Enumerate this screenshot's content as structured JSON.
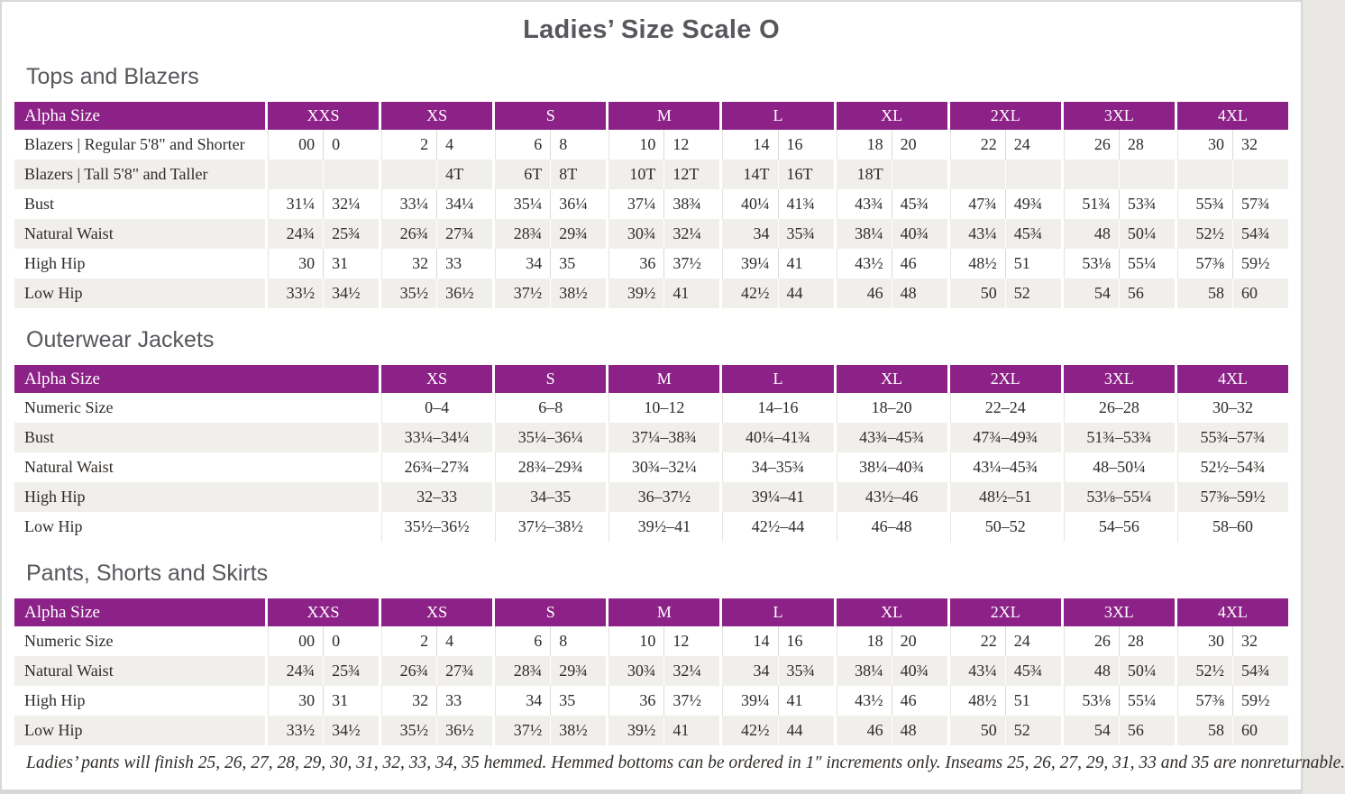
{
  "title": "Ladies’ Size Scale O",
  "colors": {
    "header_purple": "#8c2287",
    "row_stripe": "#f1efec",
    "heading_gray": "#55575b",
    "text": "#2f2b28"
  },
  "sections": [
    {
      "heading": "Tops and Blazers",
      "type": "paired",
      "header": {
        "label": "Alpha Size",
        "sizes": [
          "XXS",
          "XS",
          "S",
          "M",
          "L",
          "XL",
          "2XL",
          "3XL",
          "4XL"
        ]
      },
      "rows": [
        {
          "label": "Blazers | Regular 5'8\" and Shorter",
          "cells": [
            [
              "00",
              "0"
            ],
            [
              "2",
              "4"
            ],
            [
              "6",
              "8"
            ],
            [
              "10",
              "12"
            ],
            [
              "14",
              "16"
            ],
            [
              "18",
              "20"
            ],
            [
              "22",
              "24"
            ],
            [
              "26",
              "28"
            ],
            [
              "30",
              "32"
            ]
          ]
        },
        {
          "label": "Blazers | Tall 5'8\" and Taller",
          "cells": [
            [
              "",
              ""
            ],
            [
              "",
              "4T"
            ],
            [
              "6T",
              "8T"
            ],
            [
              "10T",
              "12T"
            ],
            [
              "14T",
              "16T"
            ],
            [
              "18T",
              ""
            ],
            [
              "",
              ""
            ],
            [
              "",
              ""
            ],
            [
              "",
              ""
            ]
          ]
        },
        {
          "label": "Bust",
          "cells": [
            [
              "31¼",
              "32¼"
            ],
            [
              "33¼",
              "34¼"
            ],
            [
              "35¼",
              "36¼"
            ],
            [
              "37¼",
              "38¾"
            ],
            [
              "40¼",
              "41¾"
            ],
            [
              "43¾",
              "45¾"
            ],
            [
              "47¾",
              "49¾"
            ],
            [
              "51¾",
              "53¾"
            ],
            [
              "55¾",
              "57¾"
            ]
          ]
        },
        {
          "label": "Natural Waist",
          "cells": [
            [
              "24¾",
              "25¾"
            ],
            [
              "26¾",
              "27¾"
            ],
            [
              "28¾",
              "29¾"
            ],
            [
              "30¾",
              "32¼"
            ],
            [
              "34",
              "35¾"
            ],
            [
              "38¼",
              "40¾"
            ],
            [
              "43¼",
              "45¾"
            ],
            [
              "48",
              "50¼"
            ],
            [
              "52½",
              "54¾"
            ]
          ]
        },
        {
          "label": "High Hip",
          "cells": [
            [
              "30",
              "31"
            ],
            [
              "32",
              "33"
            ],
            [
              "34",
              "35"
            ],
            [
              "36",
              "37½"
            ],
            [
              "39¼",
              "41"
            ],
            [
              "43½",
              "46"
            ],
            [
              "48½",
              "51"
            ],
            [
              "53⅛",
              "55¼"
            ],
            [
              "57⅜",
              "59½"
            ]
          ]
        },
        {
          "label": "Low Hip",
          "cells": [
            [
              "33½",
              "34½"
            ],
            [
              "35½",
              "36½"
            ],
            [
              "37½",
              "38½"
            ],
            [
              "39½",
              "41"
            ],
            [
              "42½",
              "44"
            ],
            [
              "46",
              "48"
            ],
            [
              "50",
              "52"
            ],
            [
              "54",
              "56"
            ],
            [
              "58",
              "60"
            ]
          ]
        }
      ]
    },
    {
      "heading": "Outerwear Jackets",
      "type": "single",
      "header": {
        "label": "Alpha Size",
        "sizes": [
          "XS",
          "S",
          "M",
          "L",
          "XL",
          "2XL",
          "3XL",
          "4XL"
        ]
      },
      "rows": [
        {
          "label": "Numeric Size",
          "cells": [
            "0–4",
            "6–8",
            "10–12",
            "14–16",
            "18–20",
            "22–24",
            "26–28",
            "30–32"
          ]
        },
        {
          "label": "Bust",
          "cells": [
            "33¼–34¼",
            "35¼–36¼",
            "37¼–38¾",
            "40¼–41¾",
            "43¾–45¾",
            "47¾–49¾",
            "51¾–53¾",
            "55¾–57¾"
          ]
        },
        {
          "label": "Natural Waist",
          "cells": [
            "26¾–27¾",
            "28¾–29¾",
            "30¾–32¼",
            "34–35¾",
            "38¼–40¾",
            "43¼–45¾",
            "48–50¼",
            "52½–54¾"
          ]
        },
        {
          "label": "High Hip",
          "cells": [
            "32–33",
            "34–35",
            "36–37½",
            "39¼–41",
            "43½–46",
            "48½–51",
            "53⅛–55¼",
            "57⅜–59½"
          ]
        },
        {
          "label": "Low Hip",
          "cells": [
            "35½–36½",
            "37½–38½",
            "39½–41",
            "42½–44",
            "46–48",
            "50–52",
            "54–56",
            "58–60"
          ]
        }
      ]
    },
    {
      "heading": "Pants, Shorts and Skirts",
      "type": "paired",
      "header": {
        "label": "Alpha Size",
        "sizes": [
          "XXS",
          "XS",
          "S",
          "M",
          "L",
          "XL",
          "2XL",
          "3XL",
          "4XL"
        ]
      },
      "rows": [
        {
          "label": "Numeric Size",
          "cells": [
            [
              "00",
              "0"
            ],
            [
              "2",
              "4"
            ],
            [
              "6",
              "8"
            ],
            [
              "10",
              "12"
            ],
            [
              "14",
              "16"
            ],
            [
              "18",
              "20"
            ],
            [
              "22",
              "24"
            ],
            [
              "26",
              "28"
            ],
            [
              "30",
              "32"
            ]
          ]
        },
        {
          "label": "Natural Waist",
          "cells": [
            [
              "24¾",
              "25¾"
            ],
            [
              "26¾",
              "27¾"
            ],
            [
              "28¾",
              "29¾"
            ],
            [
              "30¾",
              "32¼"
            ],
            [
              "34",
              "35¾"
            ],
            [
              "38¼",
              "40¾"
            ],
            [
              "43¼",
              "45¾"
            ],
            [
              "48",
              "50¼"
            ],
            [
              "52½",
              "54¾"
            ]
          ]
        },
        {
          "label": "High Hip",
          "cells": [
            [
              "30",
              "31"
            ],
            [
              "32",
              "33"
            ],
            [
              "34",
              "35"
            ],
            [
              "36",
              "37½"
            ],
            [
              "39¼",
              "41"
            ],
            [
              "43½",
              "46"
            ],
            [
              "48½",
              "51"
            ],
            [
              "53⅛",
              "55¼"
            ],
            [
              "57⅜",
              "59½"
            ]
          ]
        },
        {
          "label": "Low Hip",
          "cells": [
            [
              "33½",
              "34½"
            ],
            [
              "35½",
              "36½"
            ],
            [
              "37½",
              "38½"
            ],
            [
              "39½",
              "41"
            ],
            [
              "42½",
              "44"
            ],
            [
              "46",
              "48"
            ],
            [
              "50",
              "52"
            ],
            [
              "54",
              "56"
            ],
            [
              "58",
              "60"
            ]
          ]
        }
      ]
    }
  ],
  "footnote": "Ladies’ pants will finish 25, 26, 27, 28, 29, 30, 31, 32, 33, 34, 35 hemmed. Hemmed bottoms can be ordered in 1″ increments only. Inseams 25, 26, 27, 29, 31, 33 and 35 are nonreturnable."
}
